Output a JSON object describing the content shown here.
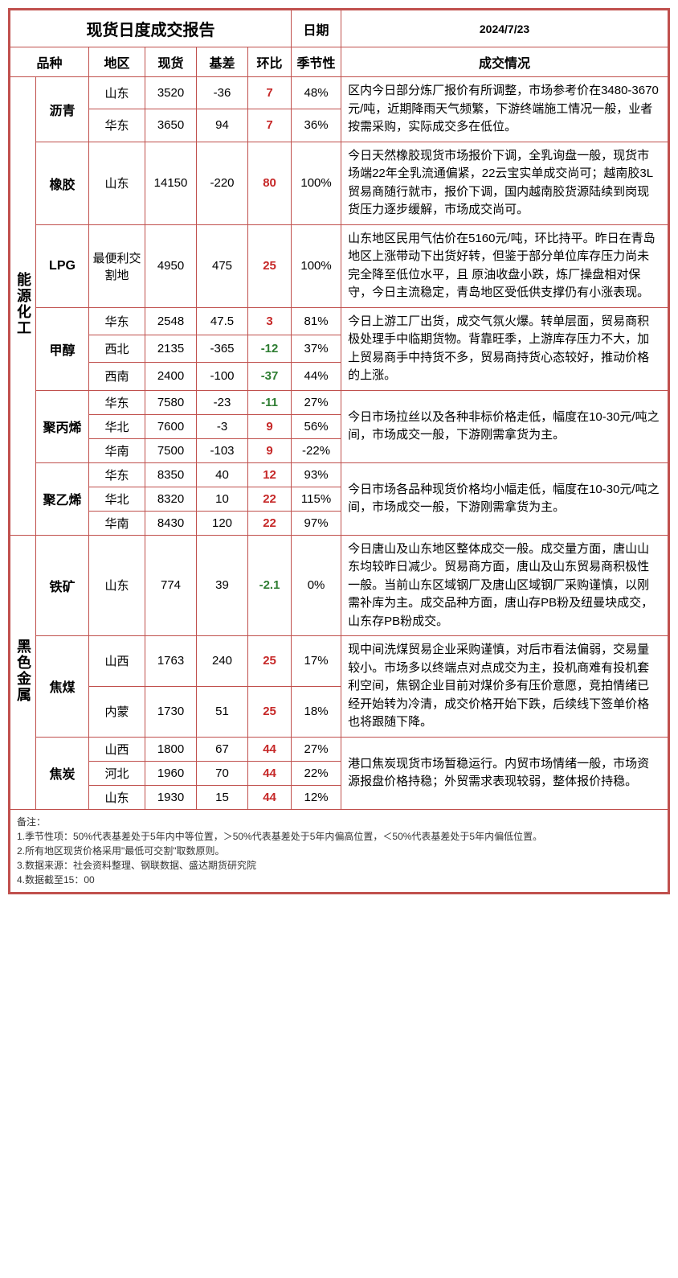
{
  "title": "现货日度成交报告",
  "date_label": "日期",
  "date_value": "2024/7/23",
  "headers": {
    "product": "品种",
    "region": "地区",
    "spot": "现货",
    "basis": "基差",
    "mom": "环比",
    "season": "季节性",
    "deal": "成交情况"
  },
  "categories": [
    {
      "name": "能源化工"
    },
    {
      "name": "黑色金属"
    }
  ],
  "rows": {
    "liq_sd": {
      "product": "沥青",
      "region": "山东",
      "spot": "3520",
      "basis": "-36",
      "mom": "7",
      "mom_class": "pos",
      "season": "48%"
    },
    "liq_hd": {
      "region": "华东",
      "spot": "3650",
      "basis": "94",
      "mom": "7",
      "mom_class": "pos",
      "season": "36%"
    },
    "liq_desc": "区内今日部分炼厂报价有所调整，市场参考价在3480-3670元/吨，近期降雨天气频繁，下游终端施工情况一般，业者按需采购，实际成交多在低位。",
    "rub_sd": {
      "product": "橡胶",
      "region": "山东",
      "spot": "14150",
      "basis": "-220",
      "mom": "80",
      "mom_class": "pos",
      "season": "100%"
    },
    "rub_desc": "今日天然橡胶现货市场报价下调，全乳询盘一般，现货市场端22年全乳流通偏紧，22云宝实单成交尚可；越南胶3L贸易商随行就市，报价下调，国内越南胶货源陆续到岗现货压力逐步缓解，市场成交尚可。",
    "lpg": {
      "product": "LPG",
      "region": "最便利交割地",
      "spot": "4950",
      "basis": "475",
      "mom": "25",
      "mom_class": "pos",
      "season": "100%"
    },
    "lpg_desc": "山东地区民用气估价在5160元/吨，环比持平。昨日在青岛地区上涨带动下出货好转，但鉴于部分单位库存压力尚未完全降至低位水平，且 原油收盘小跌，炼厂操盘相对保守，今日主流稳定，青岛地区受低供支撑仍有小涨表现。",
    "me_hd": {
      "product": "甲醇",
      "region": "华东",
      "spot": "2548",
      "basis": "47.5",
      "mom": "3",
      "mom_class": "pos",
      "season": "81%"
    },
    "me_xb": {
      "region": "西北",
      "spot": "2135",
      "basis": "-365",
      "mom": "-12",
      "mom_class": "neg",
      "season": "37%"
    },
    "me_xn": {
      "region": "西南",
      "spot": "2400",
      "basis": "-100",
      "mom": "-37",
      "mom_class": "neg",
      "season": "44%"
    },
    "me_desc": "今日上游工厂出货，成交气氛火爆。转单层面，贸易商积极处理手中临期货物。背靠旺季，上游库存压力不大，加上贸易商手中持货不多，贸易商持货心态较好，推动价格的上涨。",
    "pp_hd": {
      "product": "聚丙烯",
      "region": "华东",
      "spot": "7580",
      "basis": "-23",
      "mom": "-11",
      "mom_class": "neg",
      "season": "27%"
    },
    "pp_hb": {
      "region": "华北",
      "spot": "7600",
      "basis": "-3",
      "mom": "9",
      "mom_class": "pos",
      "season": "56%"
    },
    "pp_hn": {
      "region": "华南",
      "spot": "7500",
      "basis": "-103",
      "mom": "9",
      "mom_class": "pos",
      "season": "-22%"
    },
    "pp_desc": "今日市场拉丝以及各种非标价格走低，幅度在10-30元/吨之间，市场成交一般，下游刚需拿货为主。",
    "pe_hd": {
      "product": "聚乙烯",
      "region": "华东",
      "spot": "8350",
      "basis": "40",
      "mom": "12",
      "mom_class": "pos",
      "season": "93%"
    },
    "pe_hb": {
      "region": "华北",
      "spot": "8320",
      "basis": "10",
      "mom": "22",
      "mom_class": "pos",
      "season": "115%"
    },
    "pe_hn": {
      "region": "华南",
      "spot": "8430",
      "basis": "120",
      "mom": "22",
      "mom_class": "pos",
      "season": "97%"
    },
    "pe_desc": "今日市场各品种现货价格均小幅走低，幅度在10-30元/吨之间，市场成交一般，下游刚需拿货为主。",
    "fe_sd": {
      "product": "铁矿",
      "region": "山东",
      "spot": "774",
      "basis": "39",
      "mom": "-2.1",
      "mom_class": "neg",
      "season": "0%"
    },
    "fe_desc": "今日唐山及山东地区整体成交一般。成交量方面，唐山山东均较昨日减少。贸易商方面，唐山及山东贸易商积极性一般。当前山东区域钢厂及唐山区域钢厂采购谨慎，以刚需补库为主。成交品种方面，唐山存PB粉及纽曼块成交，山东存PB粉成交。",
    "jm_sx": {
      "product": "焦煤",
      "region": "山西",
      "spot": "1763",
      "basis": "240",
      "mom": "25",
      "mom_class": "pos",
      "season": "17%"
    },
    "jm_nm": {
      "region": "内蒙",
      "spot": "1730",
      "basis": "51",
      "mom": "25",
      "mom_class": "pos",
      "season": "18%"
    },
    "jm_desc": "现中间洗煤贸易企业采购谨慎，对后市看法偏弱，交易量较小。市场多以终端点对点成交为主，投机商难有投机套利空间，焦钢企业目前对煤价多有压价意愿，竞拍情绪已经开始转为冷清，成交价格开始下跌，后续线下签单价格也将跟随下降。",
    "jc_sx": {
      "product": "焦炭",
      "region": "山西",
      "spot": "1800",
      "basis": "67",
      "mom": "44",
      "mom_class": "pos",
      "season": "27%"
    },
    "jc_hb": {
      "region": "河北",
      "spot": "1960",
      "basis": "70",
      "mom": "44",
      "mom_class": "pos",
      "season": "22%"
    },
    "jc_sd": {
      "region": "山东",
      "spot": "1930",
      "basis": "15",
      "mom": "44",
      "mom_class": "pos",
      "season": "12%"
    },
    "jc_desc": "港口焦炭现货市场暂稳运行。内贸市场情绪一般，市场资源报盘价格持稳；外贸需求表现较弱，整体报价持稳。"
  },
  "footnotes": [
    "备注：",
    "1.季节性项：50%代表基差处于5年内中等位置，＞50%代表基差处于5年内偏高位置，＜50%代表基差处于5年内偏低位置。",
    "2.所有地区现货价格采用\"最低可交割\"取数原则。",
    "3.数据来源：社会资料整理、钢联数据、盛达期货研究院",
    "4.数据截至15：00"
  ]
}
